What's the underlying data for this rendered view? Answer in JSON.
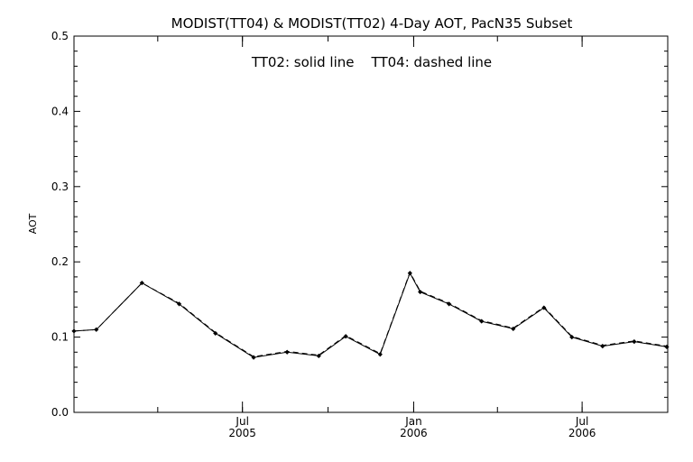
{
  "chart_data": {
    "type": "line",
    "title": "MODIST(TT04) & MODIST(TT02) 4-Day AOT, PacN35 Subset",
    "annotation": "TT02: solid line    TT04: dashed line",
    "ylabel": "AOT",
    "xlabel": "",
    "ylim": [
      0.0,
      0.5
    ],
    "y_ticks": [
      "0.0",
      "0.1",
      "0.2",
      "0.3",
      "0.4",
      "0.5"
    ],
    "x_ticks": [
      {
        "month": "Jul",
        "year": "2005",
        "date": "2005-07-01"
      },
      {
        "month": "Jan",
        "year": "2006",
        "date": "2006-01-01"
      },
      {
        "month": "Jul",
        "year": "2006",
        "date": "2006-07-01"
      }
    ],
    "grid": false,
    "series": [
      {
        "name": "TT02",
        "style": "solid",
        "points": [
          {
            "date": "2005-01-01",
            "value": 0.108
          },
          {
            "date": "2005-01-25",
            "value": 0.11
          },
          {
            "date": "2005-03-15",
            "value": 0.172
          },
          {
            "date": "2005-04-24",
            "value": 0.144
          },
          {
            "date": "2005-06-02",
            "value": 0.105
          },
          {
            "date": "2005-07-13",
            "value": 0.073
          },
          {
            "date": "2005-08-18",
            "value": 0.08
          },
          {
            "date": "2005-09-21",
            "value": 0.075
          },
          {
            "date": "2005-10-20",
            "value": 0.101
          },
          {
            "date": "2005-11-26",
            "value": 0.077
          },
          {
            "date": "2005-12-28",
            "value": 0.185
          },
          {
            "date": "2006-01-08",
            "value": 0.16
          },
          {
            "date": "2006-02-08",
            "value": 0.144
          },
          {
            "date": "2006-03-15",
            "value": 0.121
          },
          {
            "date": "2006-04-18",
            "value": 0.111
          },
          {
            "date": "2006-05-21",
            "value": 0.139
          },
          {
            "date": "2006-06-20",
            "value": 0.1
          },
          {
            "date": "2006-07-23",
            "value": 0.088
          },
          {
            "date": "2006-08-26",
            "value": 0.094
          },
          {
            "date": "2006-09-30",
            "value": 0.087
          }
        ]
      },
      {
        "name": "TT04",
        "style": "dashed",
        "points": [
          {
            "date": "2005-01-01",
            "value": 0.108
          },
          {
            "date": "2005-01-25",
            "value": 0.11
          },
          {
            "date": "2005-03-15",
            "value": 0.172
          },
          {
            "date": "2005-04-24",
            "value": 0.145
          },
          {
            "date": "2005-06-02",
            "value": 0.106
          },
          {
            "date": "2005-07-13",
            "value": 0.074
          },
          {
            "date": "2005-08-18",
            "value": 0.081
          },
          {
            "date": "2005-09-21",
            "value": 0.076
          },
          {
            "date": "2005-10-20",
            "value": 0.102
          },
          {
            "date": "2005-11-26",
            "value": 0.078
          },
          {
            "date": "2005-12-28",
            "value": 0.186
          },
          {
            "date": "2006-01-08",
            "value": 0.161
          },
          {
            "date": "2006-02-08",
            "value": 0.145
          },
          {
            "date": "2006-03-15",
            "value": 0.122
          },
          {
            "date": "2006-04-18",
            "value": 0.112
          },
          {
            "date": "2006-05-21",
            "value": 0.14
          },
          {
            "date": "2006-06-20",
            "value": 0.101
          },
          {
            "date": "2006-07-23",
            "value": 0.089
          },
          {
            "date": "2006-08-26",
            "value": 0.095
          },
          {
            "date": "2006-09-30",
            "value": 0.088
          }
        ]
      }
    ]
  }
}
